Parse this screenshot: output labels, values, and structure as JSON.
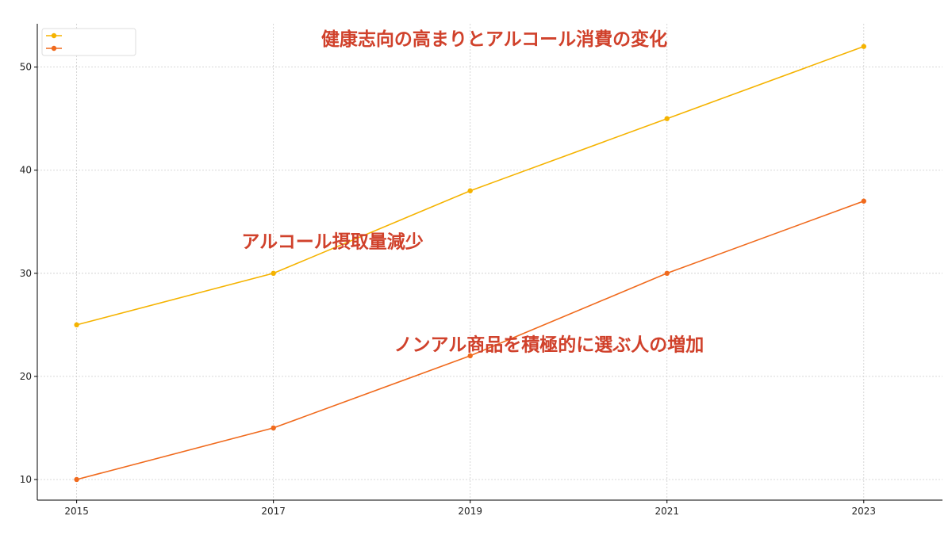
{
  "chart_data": {
    "type": "line",
    "title": "健康志向の高まりとアルコール消費の変化",
    "title_color": "#d0412b",
    "xlabel": "",
    "ylabel": "",
    "x": [
      2015,
      2017,
      2019,
      2021,
      2023
    ],
    "x_ticks": [
      "2015",
      "2017",
      "2019",
      "2021",
      "2023"
    ],
    "xlim": [
      2014.6,
      2023.8
    ],
    "y_ticks": [
      "10",
      "20",
      "30",
      "40",
      "50"
    ],
    "ylim": [
      8,
      54.2
    ],
    "grid": true,
    "legend_position": "top-left",
    "series": [
      {
        "values": [
          25,
          30,
          38,
          45,
          52
        ],
        "color": "#f5b300"
      },
      {
        "values": [
          10,
          15,
          22,
          30,
          37
        ],
        "color": "#f06a1d"
      }
    ],
    "annotations": [
      {
        "text": "アルコール摂取量減少",
        "x": 2017.6,
        "y": 32.5,
        "color": "#d0412b"
      },
      {
        "text": "ノンアル商品を積極的に選ぶ人の増加",
        "x": 2019.8,
        "y": 22.5,
        "color": "#d0412b"
      }
    ]
  }
}
